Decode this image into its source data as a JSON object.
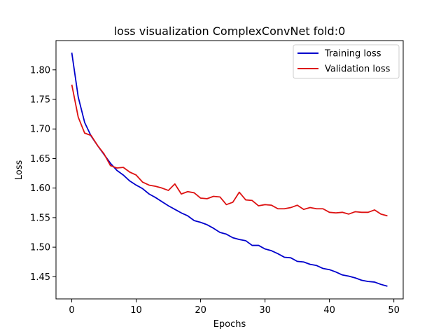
{
  "chart_data": {
    "type": "line",
    "title": "loss visualization ComplexConvNet fold:0",
    "xlabel": "Epochs",
    "ylabel": "Loss",
    "xlim": [
      -2.45,
      51.45
    ],
    "ylim": [
      1.4125,
      1.8495
    ],
    "xticks": [
      0,
      10,
      20,
      30,
      40,
      50
    ],
    "yticks": [
      1.45,
      1.5,
      1.55,
      1.6,
      1.65,
      1.7,
      1.75,
      1.8
    ],
    "ytick_labels": [
      "1.45",
      "1.50",
      "1.55",
      "1.60",
      "1.65",
      "1.70",
      "1.75",
      "1.80"
    ],
    "legend_position": "top-right",
    "grid": false,
    "x": [
      0,
      1,
      2,
      3,
      4,
      5,
      6,
      7,
      8,
      9,
      10,
      11,
      12,
      13,
      14,
      15,
      16,
      17,
      18,
      19,
      20,
      21,
      22,
      23,
      24,
      25,
      26,
      27,
      28,
      29,
      30,
      31,
      32,
      33,
      34,
      35,
      36,
      37,
      38,
      39,
      40,
      41,
      42,
      43,
      44,
      45,
      46,
      47,
      48,
      49
    ],
    "series": [
      {
        "name": "Training loss",
        "color": "#0000cc",
        "values": [
          1.829,
          1.754,
          1.711,
          1.688,
          1.672,
          1.657,
          1.642,
          1.63,
          1.622,
          1.612,
          1.605,
          1.599,
          1.59,
          1.584,
          1.577,
          1.57,
          1.564,
          1.558,
          1.553,
          1.545,
          1.542,
          1.538,
          1.532,
          1.525,
          1.522,
          1.516,
          1.513,
          1.511,
          1.503,
          1.503,
          1.497,
          1.494,
          1.489,
          1.483,
          1.482,
          1.476,
          1.475,
          1.471,
          1.469,
          1.464,
          1.462,
          1.458,
          1.453,
          1.451,
          1.448,
          1.444,
          1.442,
          1.441,
          1.437,
          1.434
        ]
      },
      {
        "name": "Validation loss",
        "color": "#dd1111",
        "values": [
          1.775,
          1.72,
          1.693,
          1.689,
          1.672,
          1.658,
          1.638,
          1.634,
          1.635,
          1.627,
          1.622,
          1.61,
          1.605,
          1.603,
          1.6,
          1.596,
          1.607,
          1.59,
          1.594,
          1.592,
          1.583,
          1.582,
          1.586,
          1.585,
          1.572,
          1.576,
          1.593,
          1.58,
          1.579,
          1.57,
          1.572,
          1.571,
          1.565,
          1.565,
          1.567,
          1.571,
          1.564,
          1.567,
          1.565,
          1.565,
          1.559,
          1.558,
          1.559,
          1.556,
          1.56,
          1.559,
          1.559,
          1.563,
          1.556,
          1.553
        ]
      }
    ]
  }
}
